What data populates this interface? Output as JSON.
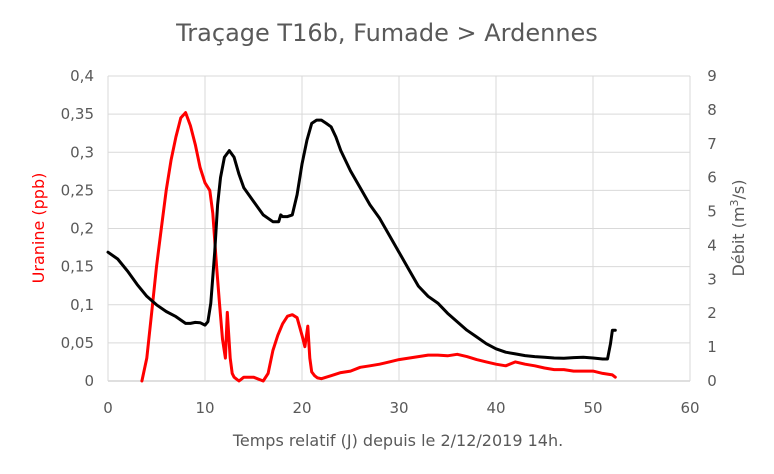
{
  "chart_data": {
    "type": "line",
    "title": "Traçage T16b, Fumade > Ardennes",
    "xlabel": "Temps relatif (J) depuis le 2/12/2019 14h.",
    "ylabel_left": "Uranine (ppb)",
    "ylabel_right_base": "Débit (m",
    "ylabel_right_sup": "3",
    "ylabel_right_end": "/s)",
    "xlim": [
      0,
      60
    ],
    "ylim_left": [
      0,
      0.4
    ],
    "ylim_right": [
      0,
      9
    ],
    "x_ticks": [
      "0",
      "10",
      "20",
      "30",
      "40",
      "50",
      "60"
    ],
    "y_left_ticks": [
      "0",
      "0,05",
      "0,1",
      "0,15",
      "0,2",
      "0,25",
      "0,3",
      "0,35",
      "0,4"
    ],
    "y_right_ticks": [
      "0",
      "1",
      "2",
      "3",
      "4",
      "5",
      "6",
      "7",
      "8",
      "9"
    ],
    "grid": true,
    "legend": "none",
    "series": [
      {
        "axis": "left",
        "color": "#ff0000",
        "x": [
          3.5,
          4.0,
          4.5,
          5.0,
          5.5,
          6.0,
          6.5,
          7.0,
          7.5,
          8.0,
          8.5,
          9.0,
          9.5,
          10.0,
          10.5,
          10.8,
          11.2,
          11.5,
          11.8,
          12.1,
          12.3,
          12.6,
          12.8,
          13.0,
          13.5,
          14,
          15,
          16,
          16.5,
          17,
          17.5,
          18,
          18.5,
          19,
          19.5,
          20,
          20.3,
          20.6,
          20.8,
          21,
          21.3,
          21.6,
          22,
          23,
          24,
          25,
          26,
          27,
          28,
          29,
          30,
          31,
          32,
          33,
          34,
          35,
          36,
          37,
          38,
          39,
          40,
          41,
          42,
          43,
          44,
          45,
          46,
          47,
          48,
          49,
          50,
          51,
          52,
          52.3
        ],
        "y": [
          0.0,
          0.03,
          0.09,
          0.15,
          0.2,
          0.25,
          0.29,
          0.32,
          0.345,
          0.352,
          0.335,
          0.31,
          0.28,
          0.26,
          0.25,
          0.22,
          0.15,
          0.1,
          0.055,
          0.03,
          0.09,
          0.03,
          0.01,
          0.005,
          0.0,
          0.005,
          0.005,
          0.0,
          0.01,
          0.04,
          0.06,
          0.075,
          0.085,
          0.087,
          0.083,
          0.06,
          0.045,
          0.072,
          0.03,
          0.012,
          0.007,
          0.004,
          0.003,
          0.007,
          0.011,
          0.013,
          0.018,
          0.02,
          0.022,
          0.025,
          0.028,
          0.03,
          0.032,
          0.034,
          0.034,
          0.033,
          0.035,
          0.032,
          0.028,
          0.025,
          0.022,
          0.02,
          0.025,
          0.022,
          0.02,
          0.017,
          0.015,
          0.015,
          0.013,
          0.013,
          0.013,
          0.01,
          0.008,
          0.005
        ]
      },
      {
        "axis": "right",
        "color": "#000000",
        "x": [
          0,
          1,
          2,
          3,
          4,
          5,
          6,
          7,
          8,
          8.5,
          9,
          9.5,
          10,
          10.3,
          10.6,
          11,
          11.3,
          11.6,
          12,
          12.5,
          13,
          13.5,
          14,
          15,
          16,
          17,
          17.6,
          17.8,
          18,
          18.5,
          19,
          19.5,
          20,
          20.5,
          21,
          21.5,
          22,
          22.5,
          23,
          23.5,
          24,
          25,
          26,
          27,
          28,
          29,
          30,
          31,
          32,
          33,
          34,
          35,
          36,
          37,
          38,
          39,
          40,
          41,
          42,
          43,
          44,
          45,
          46,
          47,
          48,
          49,
          50,
          51,
          51.5,
          51.8,
          52,
          52.3
        ],
        "y": [
          3.8,
          3.6,
          3.25,
          2.85,
          2.5,
          2.25,
          2.05,
          1.9,
          1.7,
          1.7,
          1.73,
          1.72,
          1.65,
          1.75,
          2.3,
          3.8,
          5.2,
          6.0,
          6.6,
          6.8,
          6.6,
          6.1,
          5.7,
          5.3,
          4.9,
          4.7,
          4.7,
          4.9,
          4.85,
          4.85,
          4.9,
          5.5,
          6.4,
          7.1,
          7.6,
          7.7,
          7.7,
          7.6,
          7.5,
          7.2,
          6.8,
          6.2,
          5.7,
          5.2,
          4.8,
          4.3,
          3.8,
          3.3,
          2.8,
          2.5,
          2.3,
          2.0,
          1.75,
          1.5,
          1.3,
          1.1,
          0.95,
          0.85,
          0.8,
          0.75,
          0.72,
          0.7,
          0.68,
          0.67,
          0.69,
          0.7,
          0.68,
          0.65,
          0.65,
          1.1,
          1.5,
          1.5
        ]
      }
    ]
  }
}
